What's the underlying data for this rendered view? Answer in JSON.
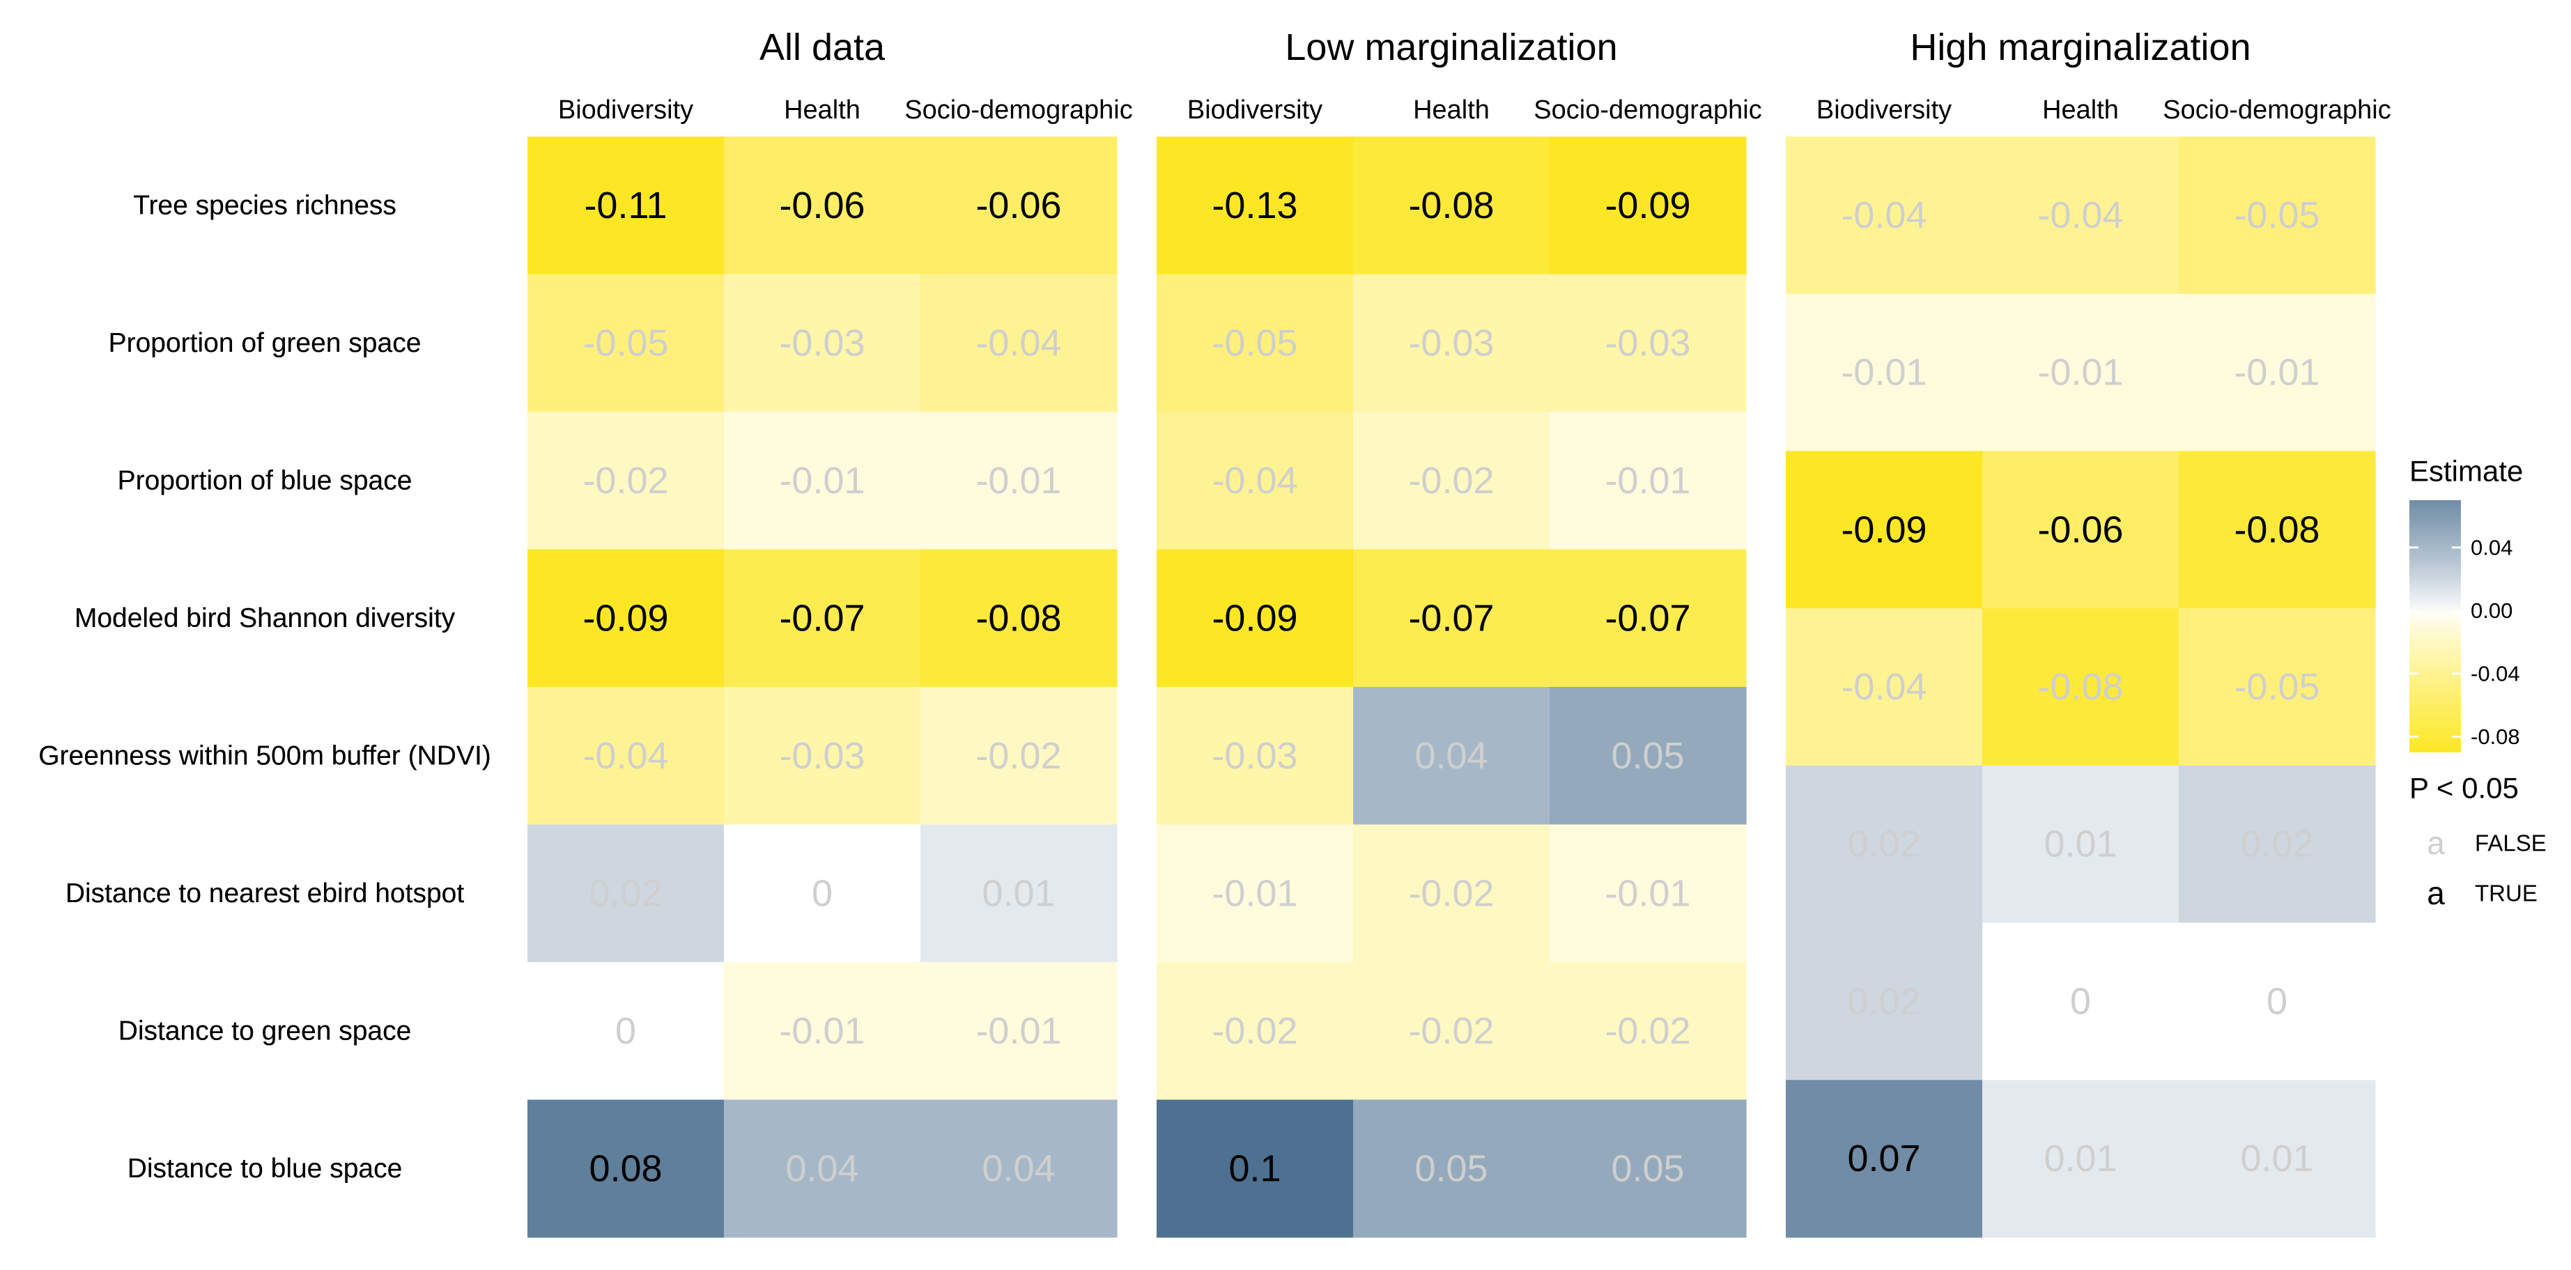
{
  "chart_data": {
    "type": "heatmap",
    "rows": [
      "Tree species richness",
      "Proportion of green space",
      "Proportion of blue space",
      "Modeled bird Shannon diversity",
      "Greenness within 500m buffer (NDVI)",
      "Distance to nearest ebird hotspot",
      "Distance to green space",
      "Distance to blue space"
    ],
    "panels": [
      {
        "title": "All data",
        "columns": [
          "Biodiversity",
          "Health",
          "Socio-demographic"
        ],
        "row_labels": [
          "Tree species richness",
          "Proportion of green space",
          "Proportion of blue space",
          "Modeled bird Shannon diversity",
          "Greenness within 500m buffer (NDVI)",
          "Distance to nearest ebird hotspot",
          "Distance to green space",
          "Distance to blue space"
        ],
        "values": [
          [
            -0.11,
            -0.06,
            -0.06
          ],
          [
            -0.05,
            -0.03,
            -0.04
          ],
          [
            -0.02,
            -0.01,
            -0.01
          ],
          [
            -0.09,
            -0.07,
            -0.08
          ],
          [
            -0.04,
            -0.03,
            -0.02
          ],
          [
            0.02,
            0,
            0.01
          ],
          [
            0,
            -0.01,
            -0.01
          ],
          [
            0.08,
            0.04,
            0.04
          ]
        ],
        "labels": [
          [
            "-0.11",
            "-0.06",
            "-0.06"
          ],
          [
            "-0.05",
            "-0.03",
            "-0.04"
          ],
          [
            "-0.02",
            "-0.01",
            "-0.01"
          ],
          [
            "-0.09",
            "-0.07",
            "-0.08"
          ],
          [
            "-0.04",
            "-0.03",
            "-0.02"
          ],
          [
            "0.02",
            "0",
            "0.01"
          ],
          [
            "0",
            "-0.01",
            "-0.01"
          ],
          [
            "0.08",
            "0.04",
            "0.04"
          ]
        ],
        "significant": [
          [
            true,
            true,
            true
          ],
          [
            false,
            false,
            false
          ],
          [
            false,
            false,
            false
          ],
          [
            true,
            true,
            true
          ],
          [
            false,
            false,
            false
          ],
          [
            false,
            false,
            false
          ],
          [
            false,
            false,
            false
          ],
          [
            true,
            false,
            false
          ]
        ]
      },
      {
        "title": "Low marginalization",
        "columns": [
          "Biodiversity",
          "Health",
          "Socio-demographic"
        ],
        "row_labels": [
          "Tree species richness",
          "Proportion of green space",
          "Proportion of blue space",
          "Modeled bird Shannon diversity",
          "Greenness within 500m buffer (NDVI)",
          "Distance to nearest ebird hotspot",
          "Distance to green space",
          "Distance to blue space"
        ],
        "values": [
          [
            -0.13,
            -0.08,
            -0.09
          ],
          [
            -0.05,
            -0.03,
            -0.03
          ],
          [
            -0.04,
            -0.02,
            -0.01
          ],
          [
            -0.09,
            -0.07,
            -0.07
          ],
          [
            -0.03,
            0.04,
            0.05
          ],
          [
            -0.01,
            -0.02,
            -0.01
          ],
          [
            -0.02,
            -0.02,
            -0.02
          ],
          [
            0.1,
            0.05,
            0.05
          ]
        ],
        "labels": [
          [
            "-0.13",
            "-0.08",
            "-0.09"
          ],
          [
            "-0.05",
            "-0.03",
            "-0.03"
          ],
          [
            "-0.04",
            "-0.02",
            "-0.01"
          ],
          [
            "-0.09",
            "-0.07",
            "-0.07"
          ],
          [
            "-0.03",
            "0.04",
            "0.05"
          ],
          [
            "-0.01",
            "-0.02",
            "-0.01"
          ],
          [
            "-0.02",
            "-0.02",
            "-0.02"
          ],
          [
            "0.1",
            "0.05",
            "0.05"
          ]
        ],
        "significant": [
          [
            true,
            true,
            true
          ],
          [
            false,
            false,
            false
          ],
          [
            false,
            false,
            false
          ],
          [
            true,
            true,
            true
          ],
          [
            false,
            false,
            false
          ],
          [
            false,
            false,
            false
          ],
          [
            false,
            false,
            false
          ],
          [
            true,
            false,
            false
          ]
        ]
      },
      {
        "title": "High marginalization",
        "columns": [
          "Biodiversity",
          "Health",
          "Socio-demographic"
        ],
        "row_labels": [],
        "values": [
          [
            -0.04,
            -0.04,
            -0.05
          ],
          [
            -0.01,
            -0.01,
            -0.01
          ],
          [
            -0.09,
            -0.06,
            -0.08
          ],
          [
            -0.04,
            -0.08,
            -0.05
          ],
          [
            0.02,
            0.01,
            0.02
          ],
          [
            0.02,
            0,
            0
          ],
          [
            0.07,
            0.01,
            0.01
          ]
        ],
        "labels": [
          [
            "-0.04",
            "-0.04",
            "-0.05"
          ],
          [
            "-0.01",
            "-0.01",
            "-0.01"
          ],
          [
            "-0.09",
            "-0.06",
            "-0.08"
          ],
          [
            "-0.04",
            "-0.08",
            "-0.05"
          ],
          [
            "0.02",
            "0.01",
            "0.02"
          ],
          [
            "0.02",
            "0",
            "0"
          ],
          [
            "0.07",
            "0.01",
            "0.01"
          ]
        ],
        "significant": [
          [
            false,
            false,
            false
          ],
          [
            false,
            false,
            false
          ],
          [
            true,
            true,
            true
          ],
          [
            false,
            false,
            false
          ],
          [
            false,
            false,
            false
          ],
          [
            false,
            false,
            false
          ],
          [
            true,
            false,
            false
          ]
        ]
      }
    ],
    "legend": {
      "title": "Estimate",
      "ticks": [
        0.04,
        0.0,
        -0.04,
        -0.08
      ],
      "tick_labels": [
        "0.04",
        "0.00",
        "-0.04",
        "-0.08"
      ],
      "range": [
        -0.09,
        0.07
      ],
      "colors": {
        "low": "#fde725",
        "mid": "#ffffff",
        "high": "#4e7191"
      },
      "p_title": "P < 0.05",
      "p_glyph": "a",
      "p_entries": [
        "FALSE",
        "TRUE"
      ],
      "placement": "right"
    }
  },
  "colors": {
    "text_significant": "#000000",
    "text_nonsignificant": "#cfcfcf"
  }
}
